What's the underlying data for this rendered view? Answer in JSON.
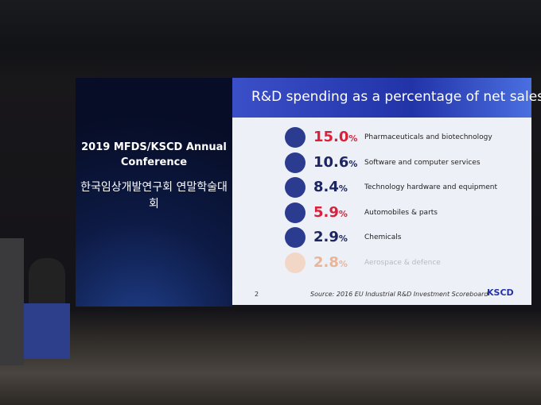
{
  "panel": {
    "conference": "2019 MFDS/KSCD Annual Conference",
    "korean": "한국임상개발연구회 연말학술대회"
  },
  "slide": {
    "title": "R&D spending as a percentage of net sales",
    "page": "2",
    "source": "Source: 2016 EU Industrial R&D Investment Scoreboard",
    "logo": "KSCD",
    "items": [
      {
        "value": "15.0",
        "unit": "%",
        "label": "Pharmaceuticals and biotechnology",
        "color": "#d8213b"
      },
      {
        "value": "10.6",
        "unit": "%",
        "label": "Software and computer services",
        "color": "#1c2560"
      },
      {
        "value": "8.4",
        "unit": "%",
        "label": "Technology hardware and equipment",
        "color": "#1c2560"
      },
      {
        "value": "5.9",
        "unit": "%",
        "label": "Automobiles & parts",
        "color": "#d8213b"
      },
      {
        "value": "2.9",
        "unit": "%",
        "label": "Chemicals",
        "color": "#1c2560"
      },
      {
        "value": "2.8",
        "unit": "%",
        "label": "Aerospace & defence",
        "color": "#e9b596"
      }
    ]
  }
}
